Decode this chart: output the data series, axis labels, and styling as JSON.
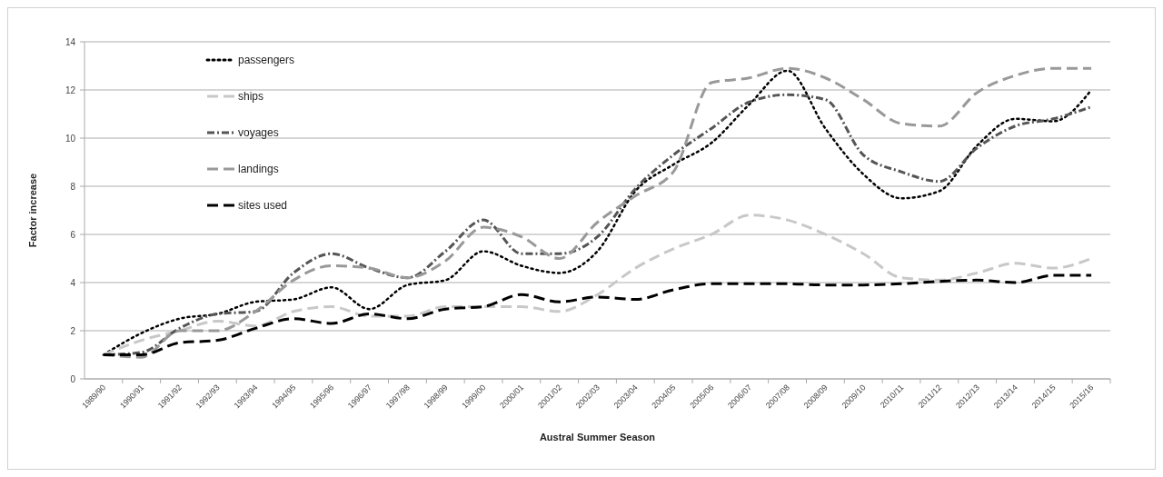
{
  "chart_data": {
    "type": "line",
    "xlabel": "Austral Summer Season",
    "ylabel": "Factor increase",
    "categories": [
      "1989/90",
      "1990/91",
      "1991/92",
      "1992/93",
      "1993/94",
      "1994/95",
      "1995/96",
      "1996/97",
      "1997/98",
      "1998/99",
      "1999/00",
      "2000/01",
      "2001/02",
      "2002/03",
      "2003/04",
      "2004/05",
      "2005/06",
      "2006/07",
      "2007/08",
      "2008/09",
      "2009/10",
      "2010/11",
      "2011/12",
      "2012/13",
      "2013/14",
      "2014/15",
      "2015/16"
    ],
    "series": [
      {
        "name": "passengers",
        "color": "#000000",
        "line_style": "dotted",
        "values": [
          1,
          1.9,
          2.5,
          2.7,
          3.2,
          3.3,
          3.8,
          2.9,
          3.9,
          4.1,
          5.3,
          4.7,
          4.4,
          5.3,
          7.8,
          8.9,
          9.8,
          11.4,
          12.8,
          10.4,
          8.5,
          7.5,
          7.8,
          9.7,
          10.8,
          10.7,
          12.0
        ]
      },
      {
        "name": "ships",
        "color": "#c8c8c8",
        "line_style": "dashed",
        "values": [
          1,
          1.6,
          2.0,
          2.4,
          2.2,
          2.8,
          3.0,
          2.6,
          2.6,
          3.0,
          3.0,
          3.0,
          2.8,
          3.5,
          4.6,
          5.4,
          6.0,
          6.8,
          6.6,
          6.0,
          5.2,
          4.2,
          4.1,
          4.4,
          4.8,
          4.6,
          5.0
        ]
      },
      {
        "name": "voyages",
        "color": "#555555",
        "line_style": "dashdot",
        "values": [
          1,
          1.1,
          2.1,
          2.7,
          2.8,
          4.4,
          5.2,
          4.6,
          4.2,
          5.3,
          6.6,
          5.2,
          5.2,
          5.9,
          7.9,
          9.3,
          10.4,
          11.5,
          11.8,
          11.6,
          9.3,
          8.6,
          8.2,
          9.6,
          10.5,
          10.8,
          11.3
        ]
      },
      {
        "name": "landings",
        "color": "#999999",
        "line_style": "dashed",
        "values": [
          1,
          0.9,
          2.0,
          2.0,
          2.8,
          4.1,
          4.7,
          4.6,
          4.2,
          4.9,
          6.3,
          5.9,
          5.0,
          6.5,
          7.6,
          8.6,
          12.3,
          12.5,
          12.9,
          12.5,
          11.6,
          10.6,
          10.5,
          11.9,
          12.6,
          12.9,
          12.9
        ]
      },
      {
        "name": "sites used",
        "color": "#000000",
        "line_style": "dashed",
        "values": [
          1,
          1.0,
          1.5,
          1.6,
          2.1,
          2.5,
          2.3,
          2.7,
          2.5,
          2.9,
          3.0,
          3.5,
          3.2,
          3.4,
          3.3,
          3.7,
          3.95,
          3.95,
          3.95,
          3.9,
          3.9,
          3.95,
          4.05,
          4.1,
          4.0,
          4.3,
          4.3
        ]
      }
    ],
    "ylim": [
      0,
      14
    ],
    "yticks": [
      0,
      2,
      4,
      6,
      8,
      10,
      12,
      14
    ],
    "grid": "y",
    "legend": "top left"
  }
}
